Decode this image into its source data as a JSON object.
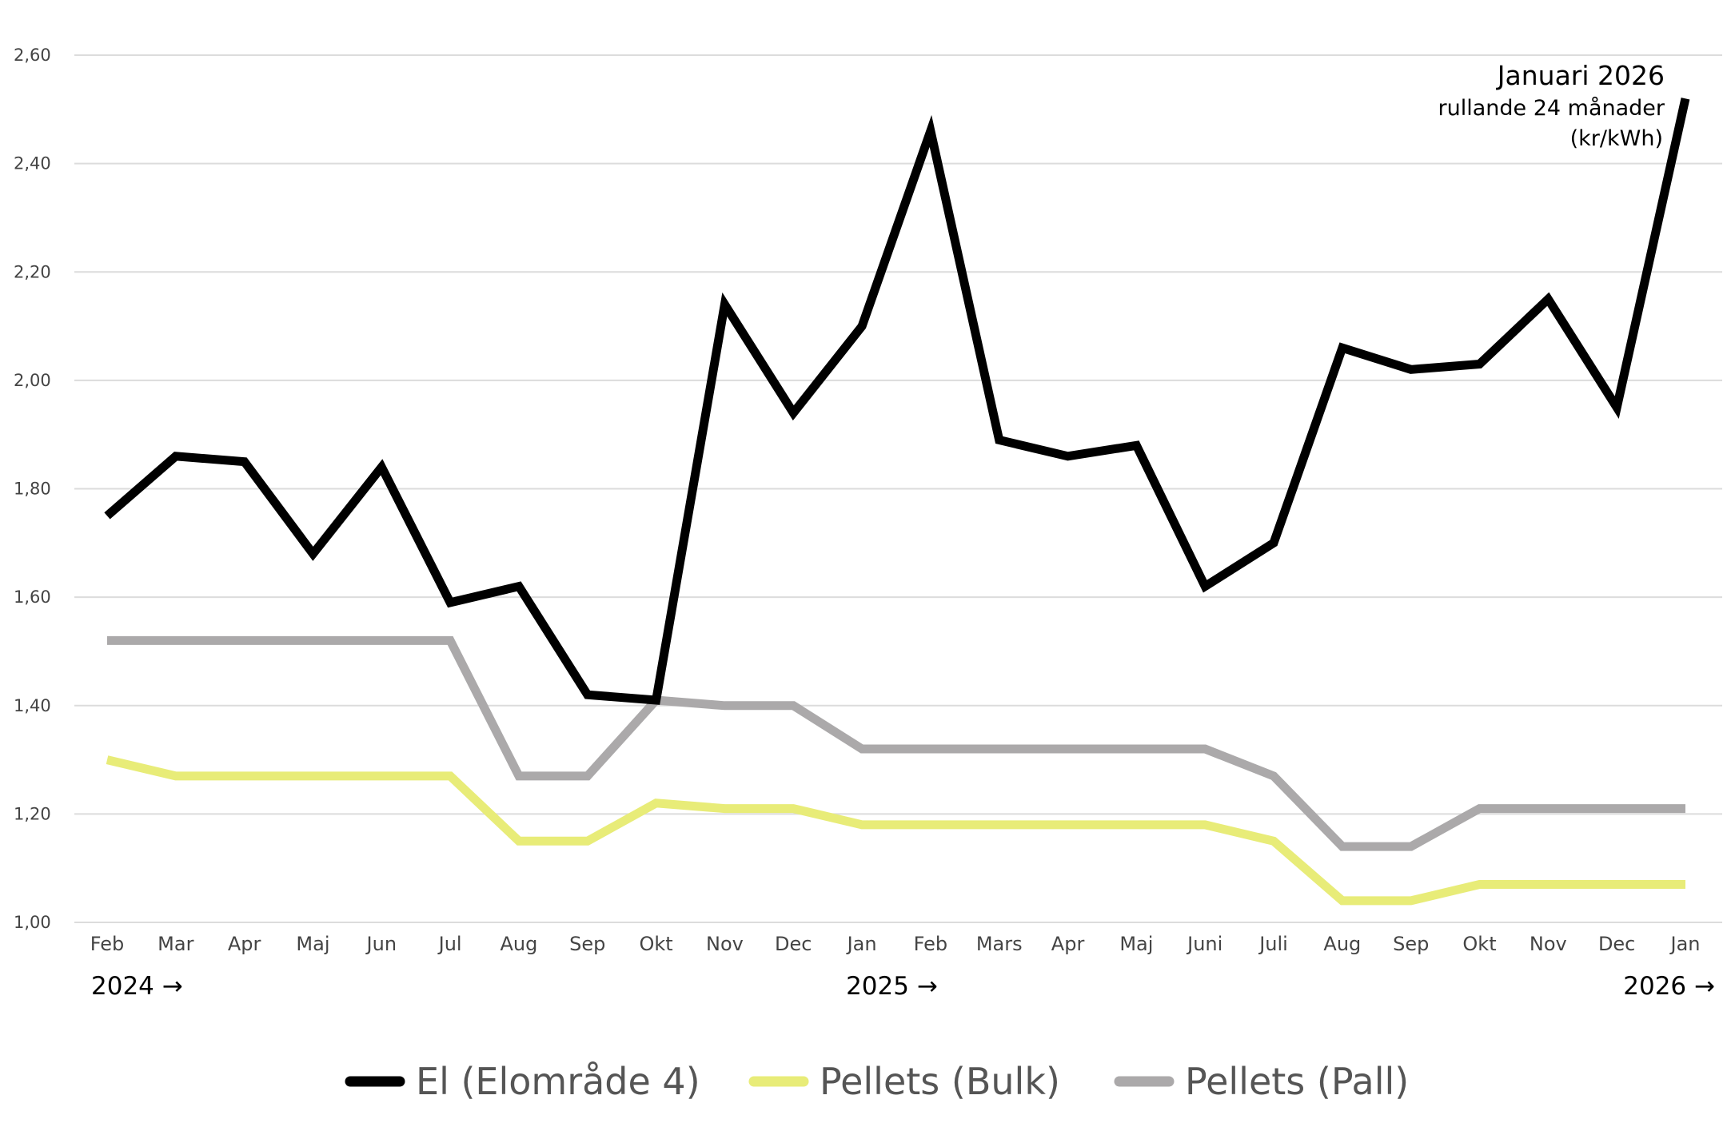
{
  "chart_data": {
    "type": "line",
    "categories": [
      "Feb",
      "Mar",
      "Apr",
      "Maj",
      "Jun",
      "Jul",
      "Aug",
      "Sep",
      "Okt",
      "Nov",
      "Dec",
      "Jan",
      "Feb",
      "Mars",
      "Apr",
      "Maj",
      "Juni",
      "Juli",
      "Aug",
      "Sep",
      "Okt",
      "Nov",
      "Dec",
      "Jan"
    ],
    "year_labels": [
      {
        "label": "2024 →",
        "at_index": 0
      },
      {
        "label": "2025 →",
        "at_index": 11
      },
      {
        "label": "2026 →",
        "at_index": 23
      }
    ],
    "yticks": [
      "1,00",
      "1,20",
      "1,40",
      "1,60",
      "1,80",
      "2,00",
      "2,20",
      "2,40",
      "2,60"
    ],
    "ylim": [
      1.0,
      2.6
    ],
    "grid": true,
    "legend_position": "bottom",
    "annotation": {
      "title": "Januari 2026",
      "line2": "rullande 24 månader",
      "line3": "(kr/kWh)"
    },
    "series": [
      {
        "name": "El (Elområde 4)",
        "color": "#000000",
        "values": [
          1.75,
          1.86,
          1.85,
          1.68,
          1.84,
          1.59,
          1.62,
          1.42,
          1.41,
          2.14,
          1.94,
          2.1,
          2.46,
          1.89,
          1.86,
          1.88,
          1.62,
          1.7,
          2.06,
          2.02,
          2.03,
          2.15,
          1.95,
          2.52
        ]
      },
      {
        "name": "Pellets (Bulk)",
        "color": "#e8ec78",
        "values": [
          1.3,
          1.27,
          1.27,
          1.27,
          1.27,
          1.27,
          1.15,
          1.15,
          1.22,
          1.21,
          1.21,
          1.18,
          1.18,
          1.18,
          1.18,
          1.18,
          1.18,
          1.15,
          1.04,
          1.04,
          1.07,
          1.07,
          1.07,
          1.07
        ]
      },
      {
        "name": "Pellets (Pall)",
        "color": "#aba9aa",
        "values": [
          1.52,
          1.52,
          1.52,
          1.52,
          1.52,
          1.52,
          1.27,
          1.27,
          1.41,
          1.4,
          1.4,
          1.32,
          1.32,
          1.32,
          1.32,
          1.32,
          1.32,
          1.27,
          1.14,
          1.14,
          1.21,
          1.21,
          1.21,
          1.21
        ]
      }
    ]
  }
}
